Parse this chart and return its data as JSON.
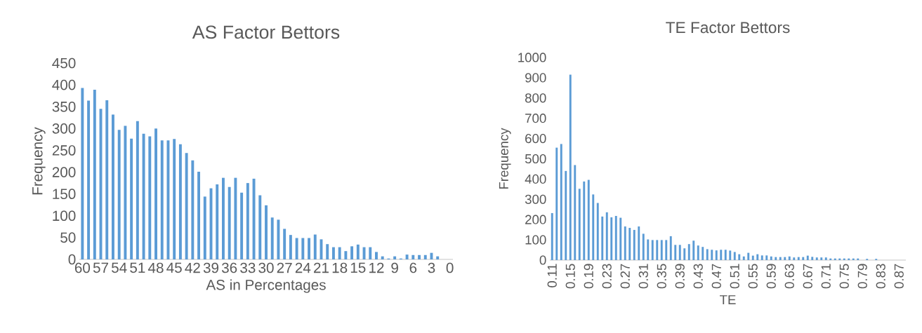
{
  "chart_data": [
    {
      "type": "bar",
      "title": "AS Factor Bettors",
      "xlabel": "AS in Percentages",
      "ylabel": "Frequency",
      "color": "#5b9bd5",
      "categories": [
        "60",
        null,
        null,
        "57",
        null,
        null,
        "54",
        null,
        null,
        "51",
        null,
        null,
        "48",
        null,
        null,
        "45",
        null,
        null,
        "42",
        null,
        null,
        "39",
        null,
        null,
        "36",
        null,
        null,
        "33",
        null,
        null,
        "30",
        null,
        null,
        "27",
        null,
        null,
        "24",
        null,
        null,
        "21",
        null,
        null,
        "18",
        null,
        null,
        "15",
        null,
        null,
        "12",
        null,
        null,
        "9",
        null,
        null,
        "6",
        null,
        null,
        "3",
        null,
        null,
        "0"
      ],
      "values": [
        393,
        364,
        389,
        345,
        365,
        332,
        297,
        306,
        277,
        317,
        288,
        282,
        300,
        273,
        273,
        276,
        264,
        244,
        227,
        201,
        144,
        163,
        172,
        187,
        166,
        187,
        153,
        175,
        185,
        147,
        124,
        96,
        91,
        70,
        56,
        49,
        49,
        49,
        57,
        46,
        35,
        28,
        28,
        19,
        30,
        34,
        28,
        28,
        17,
        7,
        2,
        7,
        2,
        11,
        10,
        10,
        10,
        15,
        7,
        0,
        0
      ],
      "ylim": [
        0,
        450
      ],
      "yticks": [
        0,
        50,
        100,
        150,
        200,
        250,
        300,
        350,
        400,
        450
      ]
    },
    {
      "type": "bar",
      "title": "TE Factor Bettors",
      "xlabel": "TE",
      "ylabel": "Frequency",
      "color": "#5b9bd5",
      "categories": [
        "0.11",
        null,
        null,
        null,
        "0.15",
        null,
        null,
        null,
        "0.19",
        null,
        null,
        null,
        "0.23",
        null,
        null,
        null,
        "0.27",
        null,
        null,
        null,
        "0.31",
        null,
        null,
        null,
        "0.35",
        null,
        null,
        null,
        "0.39",
        null,
        null,
        null,
        "0.43",
        null,
        null,
        null,
        "0.47",
        null,
        null,
        null,
        "0.51",
        null,
        null,
        null,
        "0.55",
        null,
        null,
        null,
        "0.59",
        null,
        null,
        null,
        "0.63",
        null,
        null,
        null,
        "0.67",
        null,
        null,
        null,
        "0.71",
        null,
        null,
        null,
        "0.75",
        null,
        null,
        null,
        "0.79",
        null,
        null,
        null,
        "0.83",
        null,
        null,
        null,
        "0.87",
        null
      ],
      "values": [
        232,
        555,
        573,
        440,
        915,
        469,
        352,
        388,
        396,
        324,
        282,
        215,
        236,
        211,
        218,
        209,
        166,
        159,
        149,
        166,
        130,
        102,
        99,
        99,
        99,
        99,
        118,
        75,
        75,
        58,
        79,
        96,
        72,
        65,
        54,
        51,
        48,
        51,
        51,
        47,
        40,
        29,
        18,
        36,
        22,
        29,
        23,
        23,
        18,
        15,
        15,
        15,
        18,
        13,
        15,
        15,
        22,
        16,
        13,
        13,
        13,
        8,
        8,
        8,
        8,
        8,
        8,
        8,
        0,
        6,
        0,
        6,
        0,
        0,
        0,
        0,
        0,
        0
      ],
      "ylim": [
        0,
        1000
      ],
      "yticks": [
        0,
        100,
        200,
        300,
        400,
        500,
        600,
        700,
        800,
        900,
        1000
      ]
    }
  ]
}
